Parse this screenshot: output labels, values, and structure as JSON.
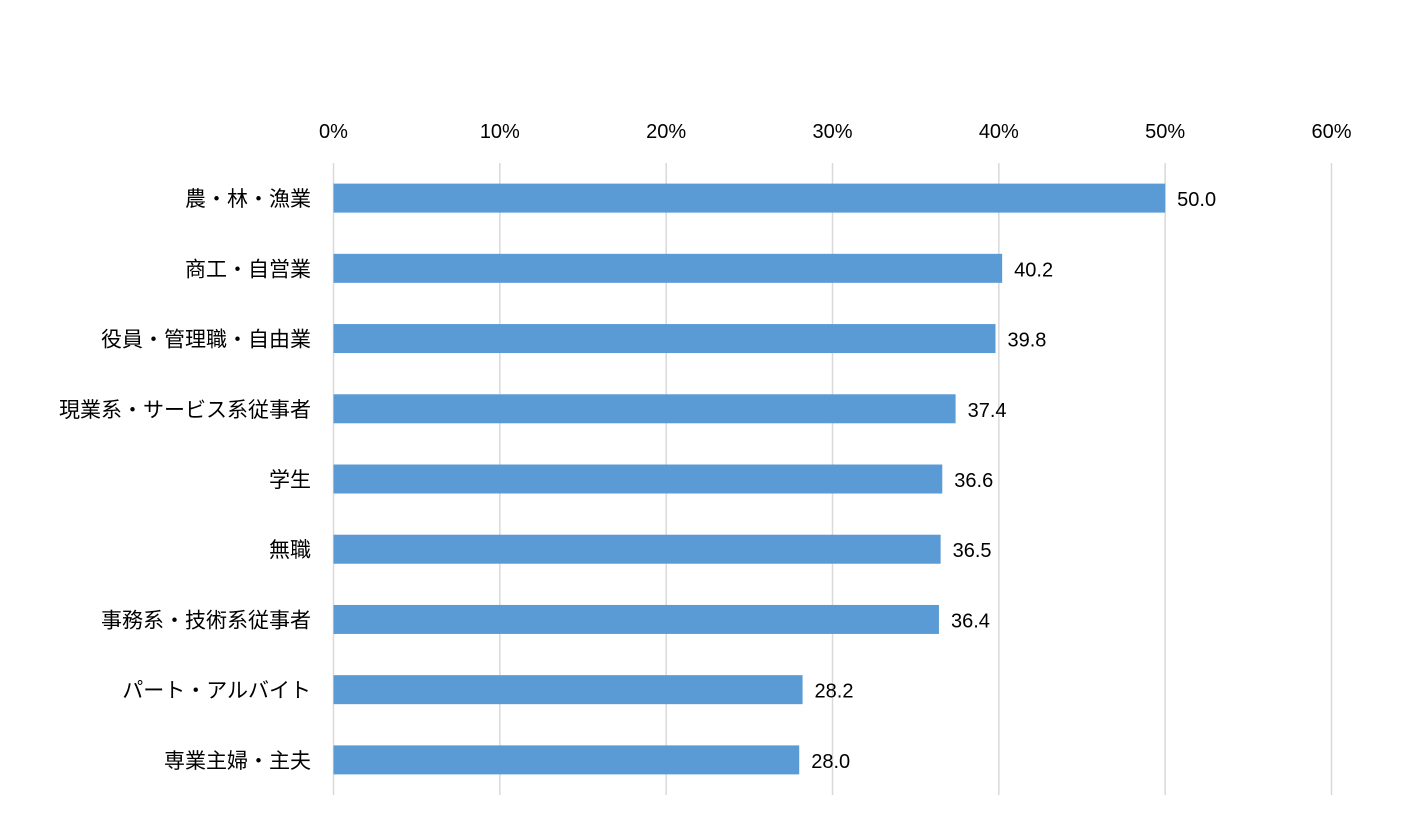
{
  "chart_data": {
    "type": "bar",
    "orientation": "horizontal",
    "categories": [
      "農・林・漁業",
      "商工・自営業",
      "役員・管理職・自由業",
      "現業系・サービス系従事者",
      "学生",
      "無職",
      "事務系・技術系従事者",
      "パート・アルバイト",
      "専業主婦・主夫"
    ],
    "values": [
      50.0,
      40.2,
      39.8,
      37.4,
      36.6,
      36.5,
      36.4,
      28.2,
      28.0
    ],
    "data_labels": [
      "50.0",
      "40.2",
      "39.8",
      "37.4",
      "36.6",
      "36.5",
      "36.4",
      "28.2",
      "28.0"
    ],
    "xaxis": {
      "position": "top",
      "ticks": [
        "0%",
        "10%",
        "20%",
        "30%",
        "40%",
        "50%",
        "60%"
      ],
      "tick_values": [
        0,
        10,
        20,
        30,
        40,
        50,
        60
      ],
      "range": [
        0,
        60
      ]
    },
    "grid": true,
    "legend": "none",
    "title": "",
    "xlabel": "",
    "ylabel": "",
    "bar_color": "#5b9bd5"
  }
}
